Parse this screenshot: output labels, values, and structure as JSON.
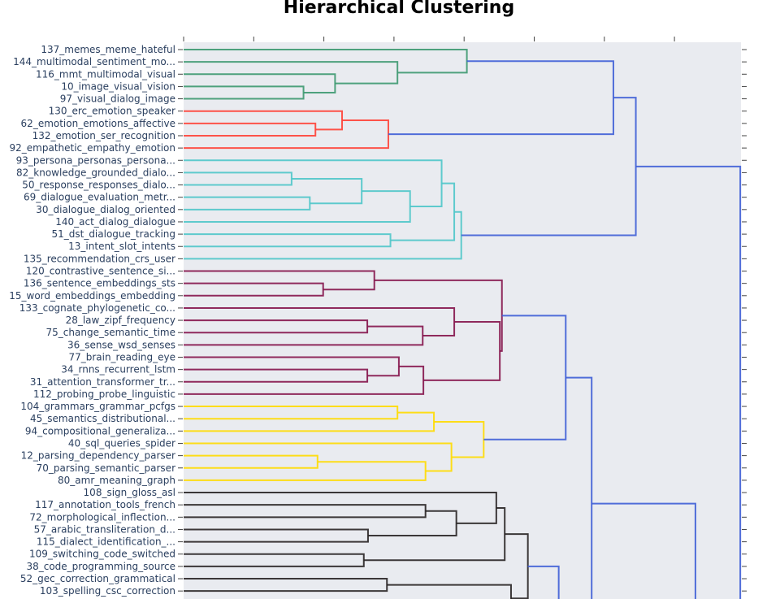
{
  "chart_data": {
    "type": "dendrogram",
    "title": "Hierarchical Clustering",
    "orientation": "left",
    "xlim": [
      0,
      7.95
    ],
    "xticks_count": 8,
    "leaves": [
      "137_memes_meme_hateful",
      "144_multimodal_sentiment_mo...",
      "116_mmt_multimodal_visual",
      "10_image_visual_vision",
      "97_visual_dialog_image",
      "130_erc_emotion_speaker",
      "62_emotion_emotions_affective",
      "132_emotion_ser_recognition",
      "92_empathetic_empathy_emotion",
      "93_persona_personas_persona...",
      "82_knowledge_grounded_dialo...",
      "50_response_responses_dialo...",
      "69_dialogue_evaluation_metr...",
      "30_dialogue_dialog_oriented",
      "140_act_dialog_dialogue",
      "51_dst_dialogue_tracking",
      "13_intent_slot_intents",
      "135_recommendation_crs_user",
      "120_contrastive_sentence_si...",
      "136_sentence_embeddings_sts",
      "15_word_embeddings_embedding",
      "133_cognate_phylogenetic_co...",
      "28_law_zipf_frequency",
      "75_change_semantic_time",
      "36_sense_wsd_senses",
      "77_brain_reading_eye",
      "34_rnns_recurrent_lstm",
      "31_attention_transformer_tr...",
      "112_probing_probe_linguistic",
      "104_grammars_grammar_pcfgs",
      "45_semantics_distributional...",
      "94_compositional_generaliza...",
      "40_sql_queries_spider",
      "12_parsing_dependency_parser",
      "70_parsing_semantic_parser",
      "80_amr_meaning_graph",
      "108_sign_gloss_asl",
      "117_annotation_tools_french",
      "72_morphological_inflection...",
      "57_arabic_transliteration_d...",
      "115_dialect_identification_...",
      "109_switching_code_switched",
      "38_code_programming_source",
      "52_gec_correction_grammatical",
      "103_spelling_csc_correction"
    ],
    "colors": {
      "green": "#3d9970",
      "red": "#ff4136",
      "cyan": "#4fc6c9",
      "maroon": "#85144b",
      "yellow": "#ffdc00",
      "black": "#282323",
      "blue": "#3f5fd6"
    },
    "links": [
      {
        "c": "green",
        "x": [
          0,
          1.71,
          1.71,
          0
        ],
        "y": [
          3,
          3,
          4,
          4
        ]
      },
      {
        "c": "green",
        "x": [
          0,
          2.16,
          2.16,
          1.71
        ],
        "y": [
          2,
          2,
          3.5,
          3.5
        ]
      },
      {
        "c": "green",
        "x": [
          0,
          3.05,
          3.05,
          2.16
        ],
        "y": [
          1,
          1,
          2.75,
          2.75
        ]
      },
      {
        "c": "green",
        "x": [
          0,
          4.04,
          4.04,
          3.05
        ],
        "y": [
          0,
          0,
          1.875,
          1.875
        ]
      },
      {
        "c": "red",
        "x": [
          0,
          1.88,
          1.88,
          0
        ],
        "y": [
          6,
          6,
          7,
          7
        ]
      },
      {
        "c": "red",
        "x": [
          0,
          2.26,
          2.26,
          1.88
        ],
        "y": [
          5,
          5,
          6.5,
          6.5
        ]
      },
      {
        "c": "red",
        "x": [
          2.26,
          2.92,
          2.92,
          0
        ],
        "y": [
          5.75,
          5.75,
          8,
          8
        ]
      },
      {
        "c": "cyan",
        "x": [
          0,
          1.54,
          1.54,
          0
        ],
        "y": [
          10,
          10,
          11,
          11
        ]
      },
      {
        "c": "cyan",
        "x": [
          0,
          1.8,
          1.8,
          0
        ],
        "y": [
          12,
          12,
          13,
          13
        ]
      },
      {
        "c": "cyan",
        "x": [
          1.54,
          2.54,
          2.54,
          1.8
        ],
        "y": [
          10.5,
          10.5,
          12.5,
          12.5
        ]
      },
      {
        "c": "cyan",
        "x": [
          2.54,
          3.23,
          3.23,
          0
        ],
        "y": [
          11.5,
          11.5,
          14,
          14
        ]
      },
      {
        "c": "cyan",
        "x": [
          0,
          3.68,
          3.68,
          3.23
        ],
        "y": [
          9,
          9,
          12.75,
          12.75
        ]
      },
      {
        "c": "cyan",
        "x": [
          0,
          2.95,
          2.95,
          0
        ],
        "y": [
          15,
          15,
          16,
          16
        ]
      },
      {
        "c": "cyan",
        "x": [
          3.68,
          3.86,
          3.86,
          2.95
        ],
        "y": [
          10.875,
          10.875,
          15.5,
          15.5
        ]
      },
      {
        "c": "cyan",
        "x": [
          3.86,
          3.96,
          3.96,
          0
        ],
        "y": [
          13.19,
          13.19,
          17,
          17
        ]
      },
      {
        "c": "blue",
        "x": [
          4.04,
          6.13,
          6.13,
          2.92
        ],
        "y": [
          0.9375,
          0.9375,
          6.875,
          6.875
        ]
      },
      {
        "c": "blue",
        "x": [
          6.13,
          6.45,
          6.45,
          3.96
        ],
        "y": [
          3.906,
          3.906,
          15.09,
          15.09
        ]
      },
      {
        "c": "maroon",
        "x": [
          0,
          1.99,
          1.99,
          0
        ],
        "y": [
          19,
          19,
          20,
          20
        ]
      },
      {
        "c": "maroon",
        "x": [
          0,
          2.72,
          2.72,
          1.99
        ],
        "y": [
          18,
          18,
          19.5,
          19.5
        ]
      },
      {
        "c": "maroon",
        "x": [
          0,
          2.62,
          2.62,
          0
        ],
        "y": [
          22,
          22,
          23,
          23
        ]
      },
      {
        "c": "maroon",
        "x": [
          2.62,
          3.41,
          3.41,
          0
        ],
        "y": [
          22.5,
          22.5,
          24,
          24
        ]
      },
      {
        "c": "maroon",
        "x": [
          0,
          3.86,
          3.86,
          3.41
        ],
        "y": [
          21,
          21,
          23.25,
          23.25
        ]
      },
      {
        "c": "maroon",
        "x": [
          0,
          2.62,
          2.62,
          0
        ],
        "y": [
          26,
          26,
          27,
          27
        ]
      },
      {
        "c": "maroon",
        "x": [
          0,
          3.07,
          3.07,
          2.62
        ],
        "y": [
          25,
          25,
          26.5,
          26.5
        ]
      },
      {
        "c": "maroon",
        "x": [
          3.07,
          3.42,
          3.42,
          0
        ],
        "y": [
          25.75,
          25.75,
          28,
          28
        ]
      },
      {
        "c": "maroon",
        "x": [
          3.86,
          4.51,
          4.51,
          3.42
        ],
        "y": [
          22.125,
          22.125,
          26.875,
          26.875
        ]
      },
      {
        "c": "maroon",
        "x": [
          2.72,
          4.54,
          4.54,
          4.51
        ],
        "y": [
          18.75,
          18.75,
          24.5,
          24.5
        ]
      },
      {
        "c": "yellow",
        "x": [
          0,
          3.05,
          3.05,
          0
        ],
        "y": [
          29,
          29,
          30,
          30
        ]
      },
      {
        "c": "yellow",
        "x": [
          3.05,
          3.57,
          3.57,
          0
        ],
        "y": [
          29.5,
          29.5,
          31,
          31
        ]
      },
      {
        "c": "yellow",
        "x": [
          0,
          1.91,
          1.91,
          0
        ],
        "y": [
          33,
          33,
          34,
          34
        ]
      },
      {
        "c": "yellow",
        "x": [
          1.91,
          3.45,
          3.45,
          0
        ],
        "y": [
          33.5,
          33.5,
          35,
          35
        ]
      },
      {
        "c": "yellow",
        "x": [
          0,
          3.82,
          3.82,
          3.45
        ],
        "y": [
          32,
          32,
          34.25,
          34.25
        ]
      },
      {
        "c": "yellow",
        "x": [
          3.57,
          4.28,
          4.28,
          3.82
        ],
        "y": [
          30.25,
          30.25,
          33.125,
          33.125
        ]
      },
      {
        "c": "blue",
        "x": [
          4.54,
          5.45,
          5.45,
          4.28
        ],
        "y": [
          21.625,
          21.625,
          31.69,
          31.69
        ]
      },
      {
        "c": "black",
        "x": [
          0,
          3.45,
          3.45,
          0
        ],
        "y": [
          37,
          37,
          38,
          38
        ]
      },
      {
        "c": "black",
        "x": [
          0,
          2.63,
          2.63,
          0
        ],
        "y": [
          39,
          39,
          40,
          40
        ]
      },
      {
        "c": "black",
        "x": [
          3.45,
          3.89,
          3.89,
          2.63
        ],
        "y": [
          37.5,
          37.5,
          39.5,
          39.5
        ]
      },
      {
        "c": "black",
        "x": [
          0,
          4.46,
          4.46,
          3.89
        ],
        "y": [
          36,
          36,
          38.5,
          38.5
        ]
      },
      {
        "c": "black",
        "x": [
          0,
          2.57,
          2.57,
          0
        ],
        "y": [
          41,
          41,
          42,
          42
        ]
      },
      {
        "c": "black",
        "x": [
          4.46,
          4.58,
          4.58,
          2.57
        ],
        "y": [
          37.25,
          37.25,
          41.5,
          41.5
        ]
      },
      {
        "c": "black",
        "x": [
          0,
          2.9,
          2.9,
          0
        ],
        "y": [
          43,
          43,
          44,
          44
        ]
      },
      {
        "c": "black",
        "x": [
          2.9,
          4.67,
          4.67,
          4.67
        ],
        "y": [
          43.5,
          43.5,
          46.5,
          46.5
        ]
      },
      {
        "c": "black",
        "x": [
          4.58,
          4.91,
          4.91,
          4.67
        ],
        "y": [
          39.375,
          39.375,
          44.6,
          44.6
        ]
      },
      {
        "c": "blue",
        "x": [
          4.91,
          5.35,
          5.35,
          5.35
        ],
        "y": [
          42,
          42,
          48,
          48
        ]
      },
      {
        "c": "blue",
        "x": [
          5.45,
          5.82,
          5.82,
          5.82
        ],
        "y": [
          26.66,
          26.66,
          48,
          48
        ]
      },
      {
        "c": "blue",
        "x": [
          5.82,
          7.3,
          7.3,
          7.3
        ],
        "y": [
          36.9,
          36.9,
          48,
          48
        ]
      },
      {
        "c": "blue",
        "x": [
          6.45,
          7.94,
          7.94,
          7.94
        ],
        "y": [
          9.5,
          9.5,
          48,
          48
        ]
      }
    ]
  }
}
